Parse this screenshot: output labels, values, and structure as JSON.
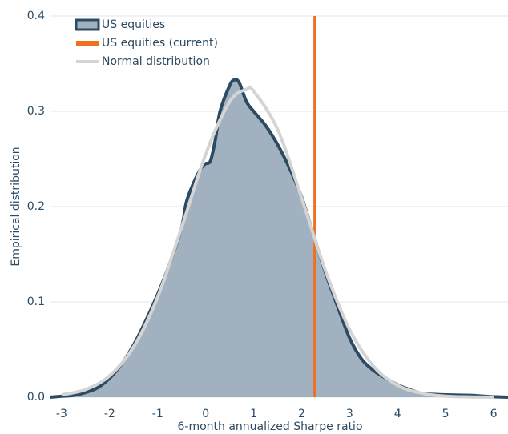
{
  "chart_data": {
    "type": "density",
    "x_label": "6-month annualized Sharpe ratio",
    "y_label": "Empirical distribution",
    "xlim": [
      -3.25,
      6.3
    ],
    "ylim": [
      0,
      0.4
    ],
    "xticks": [
      -3,
      -2,
      -1,
      0,
      1,
      2,
      3,
      4,
      5,
      6
    ],
    "yticks": [
      {
        "value": 0,
        "label": "0.0"
      },
      0.1,
      0.2,
      0.3,
      0.4
    ],
    "grid": true,
    "legend": "upper left",
    "series": [
      {
        "name": "US equities",
        "kind": "area",
        "color": "#a1b1bf",
        "edge_color": "#2b4a63",
        "x": [
          -3.25,
          -3,
          -2.75,
          -2.5,
          -2.25,
          -2,
          -1.75,
          -1.5,
          -1.25,
          -1,
          -0.75,
          -0.5,
          -0.4,
          -0.25,
          -0.1,
          0,
          0.1,
          0.2,
          0.3,
          0.5,
          0.6,
          0.7,
          0.85,
          1,
          1.25,
          1.5,
          1.75,
          2,
          2.25,
          2.5,
          2.75,
          3,
          3.25,
          3.5,
          3.75,
          4,
          4.25,
          4.5,
          4.75,
          5,
          5.5,
          6,
          6.3
        ],
        "values": [
          0,
          0.001,
          0.002,
          0.005,
          0.01,
          0.02,
          0.035,
          0.055,
          0.08,
          0.108,
          0.14,
          0.178,
          0.205,
          0.225,
          0.24,
          0.245,
          0.248,
          0.27,
          0.3,
          0.327,
          0.333,
          0.33,
          0.31,
          0.3,
          0.285,
          0.265,
          0.24,
          0.21,
          0.17,
          0.13,
          0.095,
          0.062,
          0.04,
          0.028,
          0.02,
          0.013,
          0.008,
          0.004,
          0.003,
          0.0025,
          0.002,
          0.0005,
          0
        ]
      },
      {
        "name": "US equities (current)",
        "kind": "vline",
        "color": "#f07020",
        "value": 2.27
      },
      {
        "name": "Normal distribution",
        "kind": "line",
        "color": "#d4d4d4",
        "x": [
          -3,
          -2.5,
          -2,
          -1.5,
          -1,
          -0.5,
          0,
          0.5,
          0.85,
          1,
          1.5,
          2,
          2.5,
          3,
          3.5,
          4,
          4.5,
          5,
          5.5,
          6
        ],
        "values": [
          0.0025,
          0.0081,
          0.0225,
          0.0529,
          0.105,
          0.178,
          0.255,
          0.31,
          0.323,
          0.321,
          0.281,
          0.209,
          0.132,
          0.071,
          0.0323,
          0.0125,
          0.0041,
          0.0011,
          0.0003,
          0.0001
        ]
      }
    ]
  }
}
